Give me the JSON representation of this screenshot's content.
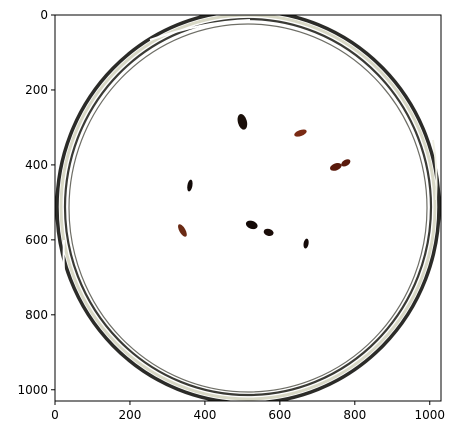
{
  "figure": {
    "kind": "image-with-axes",
    "subject": "petri dish with dark insect specimens on white background",
    "x_axis": {
      "ticks": [
        {
          "value": 0,
          "label": "0"
        },
        {
          "value": 200,
          "label": "200"
        },
        {
          "value": 400,
          "label": "400"
        },
        {
          "value": 600,
          "label": "600"
        },
        {
          "value": 800,
          "label": "800"
        },
        {
          "value": 1000,
          "label": "1000"
        }
      ],
      "range": [
        0,
        1030
      ]
    },
    "y_axis": {
      "ticks": [
        {
          "value": 0,
          "label": "0"
        },
        {
          "value": 200,
          "label": "200"
        },
        {
          "value": 400,
          "label": "400"
        },
        {
          "value": 600,
          "label": "600"
        },
        {
          "value": 800,
          "label": "800"
        },
        {
          "value": 1000,
          "label": "1000"
        }
      ],
      "range": [
        0,
        1030
      ],
      "inverted": true
    },
    "dish": {
      "rim_color": "#2b2b28",
      "rim_highlight_color": "#d8d8c6",
      "interior_color": "#ffffff"
    },
    "specimens": [
      {
        "name": "beetle-1",
        "x": 500,
        "y": 285,
        "color": "#1a0f0a"
      },
      {
        "name": "beetle-2",
        "x": 655,
        "y": 315,
        "color": "#7a2a14"
      },
      {
        "name": "beetle-3",
        "x": 760,
        "y": 400,
        "color": "#5a1a0c"
      },
      {
        "name": "beetle-4",
        "x": 360,
        "y": 455,
        "color": "#120a08"
      },
      {
        "name": "beetle-5",
        "x": 340,
        "y": 575,
        "color": "#6a2a14"
      },
      {
        "name": "beetle-6",
        "x": 525,
        "y": 560,
        "color": "#120806"
      },
      {
        "name": "beetle-7",
        "x": 570,
        "y": 580,
        "color": "#1a0c08"
      },
      {
        "name": "beetle-8",
        "x": 670,
        "y": 610,
        "color": "#140a08"
      }
    ]
  }
}
